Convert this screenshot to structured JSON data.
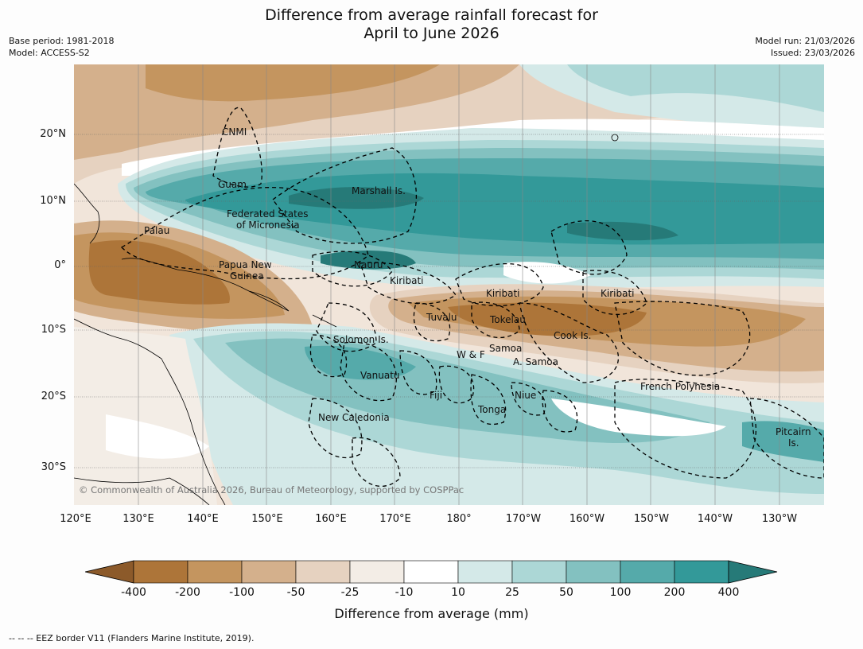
{
  "title_line1": "Difference from average rainfall forecast for",
  "title_line2": "April to June 2026",
  "meta_left": [
    "Base period: 1981-2018",
    "Model: ACCESS-S2"
  ],
  "meta_right": [
    "Model run: 21/03/2026",
    "Issued: 23/03/2026"
  ],
  "lat_labels": [
    "20°N",
    "10°N",
    "0°",
    "10°S",
    "20°S",
    "30°S"
  ],
  "lon_labels": [
    "120°E",
    "130°E",
    "140°E",
    "150°E",
    "160°E",
    "170°E",
    "180°",
    "170°W",
    "160°W",
    "150°W",
    "140°W",
    "130°W"
  ],
  "regions": [
    "CNMI",
    "Guam",
    "Marshall Is.",
    "Federated States",
    "of Micronesia",
    "Palau",
    "Papua New",
    "Guinea",
    "Nauru",
    "Kiribati",
    "Kiribati",
    "Kiribati",
    "Tuvalu",
    "Tokelau",
    "Cook Is.",
    "Solomon Is.",
    "W & F",
    "Samoa",
    "A. Samoa",
    "Vanuatu",
    "Fiji",
    "Niue",
    "Tonga",
    "French Polynesia",
    "New Caledonia",
    "Pitcairn",
    "Is."
  ],
  "copyright": "© Commonwealth of Australia 2026, Bureau of Meteorology, supported by COSPPac",
  "legend": {
    "title": "Difference from average (mm)",
    "ticks": [
      "-400",
      "-200",
      "-100",
      "-50",
      "-25",
      "-10",
      "10",
      "25",
      "50",
      "100",
      "200",
      "400"
    ],
    "colors": [
      "#8c5a2a",
      "#ad7539",
      "#c4955f",
      "#d4b08c",
      "#e6d2c0",
      "#f3ede6",
      "#ffffff",
      "#d4e9e8",
      "#acd7d6",
      "#83c1c0",
      "#55aaaa",
      "#339999",
      "#267a78"
    ]
  },
  "footnote": "--  --  -- EEZ border V11 (Flanders Marine Institute, 2019)."
}
